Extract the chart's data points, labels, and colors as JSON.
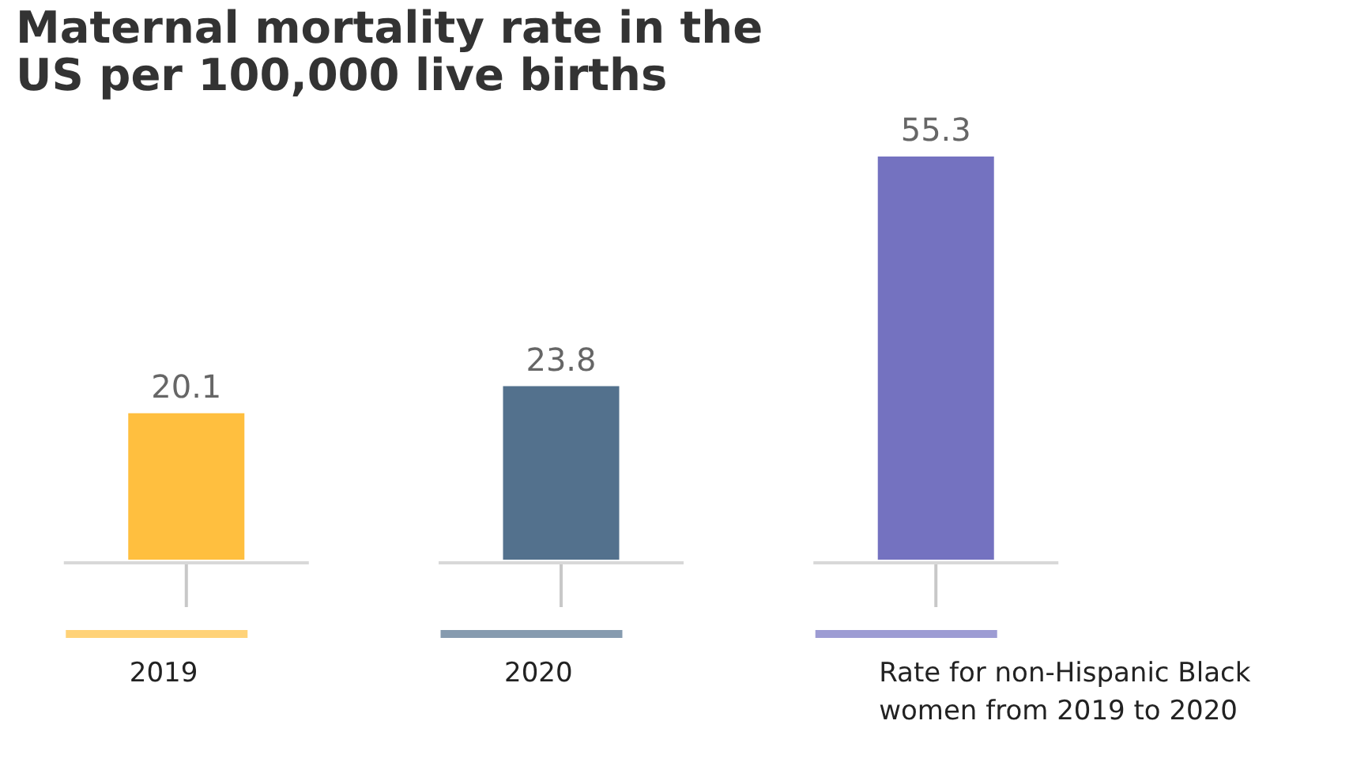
{
  "chart_data": {
    "type": "bar",
    "title": "Maternal mortality rate in the\nUS per 100,000 live births",
    "categories": [
      "2019",
      "2020",
      "Rate for non-Hispanic Black women from 2019 to 2020"
    ],
    "values": [
      20.1,
      23.8,
      55.3
    ],
    "colors": [
      "#ffbf3f",
      "#53718d",
      "#7472c0"
    ],
    "ylim": [
      0,
      55.3
    ],
    "data_labels": true,
    "grid": false,
    "legend": false
  }
}
